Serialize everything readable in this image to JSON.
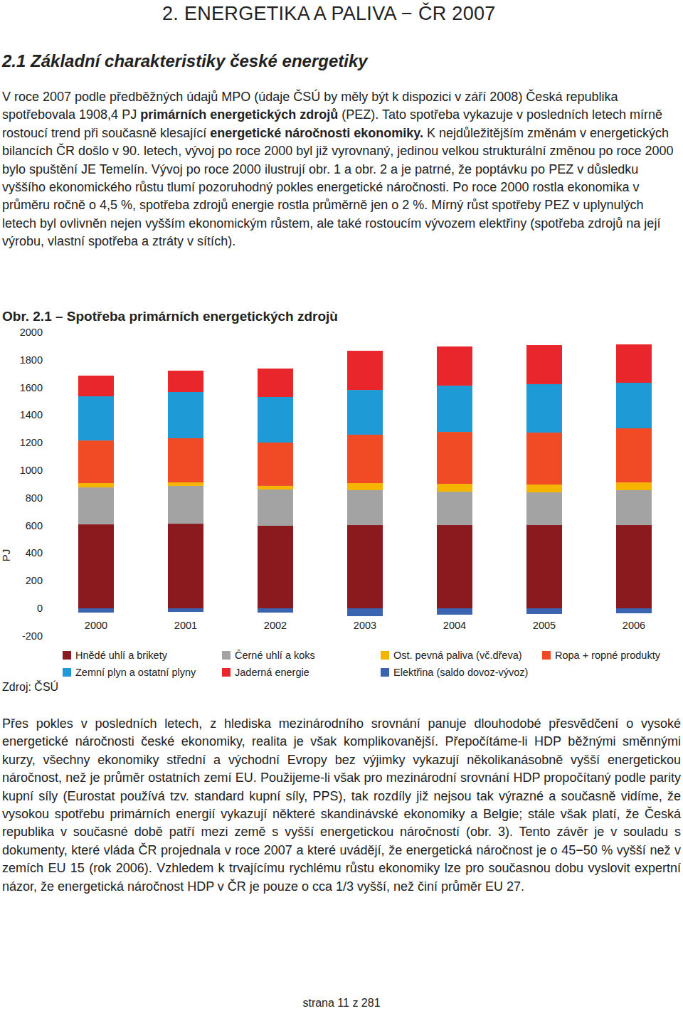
{
  "header": {
    "title": "2. ENERGETIKA A PALIVA − ČR 2007",
    "subtitle": "2.1 Základní charakteristiky české energetiky"
  },
  "intro": {
    "spans": [
      {
        "text": "V roce 2007 podle předběžných údajů MPO (údaje ČSÚ by měly být k dispozici v září 2008) Česká republika spotřebovala 1908,4 PJ ",
        "bold": false
      },
      {
        "text": "primárních energetických zdrojů",
        "bold": true
      },
      {
        "text": " (PEZ). Tato spotřeba vykazuje v posledních letech mírně rostoucí trend při současně klesající ",
        "bold": false
      },
      {
        "text": "energetické náročnosti ekonomiky.",
        "bold": true
      },
      {
        "text": " K nejdůležitějším změnám v energetických bilancích ČR došlo v 90. letech, vývoj po roce 2000 byl již vyrovnaný, jedinou velkou strukturální změnou po roce 2000 bylo spuštění JE Temelín. Vývoj po roce 2000 ilustrují obr. 1 a obr. 2 a je patrné, že poptávku po PEZ v důsledku vyššího ekonomického růstu tlumí pozoruhodný pokles energetické náročnosti. Po roce 2000 rostla ekonomika v průměru ročně o 4,5 %, spotřeba zdrojů energie rostla průměrně jen o 2 %. Mírný růst spotřeby PEZ v uplynulých letech byl ovlivněn nejen vyšším ekonomickým růstem, ale také rostoucím vývozem elektřiny (spotřeba zdrojů na její výrobu, vlastní spotřeba a ztráty v sítích).",
        "bold": false
      }
    ]
  },
  "figure": {
    "title": "Obr. 2.1 – Spotřeba primárních energetických zdrojù",
    "source": "Zdroj: ČSÚ"
  },
  "chart_data": {
    "type": "bar",
    "stacked": true,
    "y_label": "PJ",
    "categories": [
      "2000",
      "2001",
      "2002",
      "2003",
      "2004",
      "2005",
      "2006"
    ],
    "ylim": [
      -200,
      2000
    ],
    "yticks": [
      -200,
      0,
      200,
      400,
      600,
      800,
      1000,
      1200,
      1400,
      1600,
      1800,
      2000
    ],
    "grid": false,
    "legend": "bottom",
    "series": [
      {
        "name": "Hnědé uhlí a brikety",
        "color": "#8b1a1e",
        "values": [
          608,
          613,
          598,
          603,
          603,
          603,
          603
        ]
      },
      {
        "name": "Černé uhlí a koks",
        "color": "#a3a3a3",
        "values": [
          268,
          274,
          263,
          253,
          242,
          237,
          253
        ]
      },
      {
        "name": "Ost. pevná paliva (vč.dřeva)",
        "color": "#f5b400",
        "values": [
          31,
          25,
          26,
          51,
          57,
          57,
          56
        ]
      },
      {
        "name": "Ropa + ropné produkty",
        "color": "#f04b24",
        "values": [
          309,
          320,
          314,
          351,
          376,
          376,
          392
        ]
      },
      {
        "name": "Zemní plyn a ostatní plyny",
        "color": "#1e9ad6",
        "values": [
          320,
          335,
          330,
          324,
          335,
          351,
          330
        ]
      },
      {
        "name": "Jaderná energie",
        "color": "#e8262b",
        "values": [
          150,
          155,
          206,
          284,
          284,
          283,
          278
        ]
      },
      {
        "name": "Elektřina (saldo dovoz-vývoz)",
        "color": "#3a64b0",
        "values": [
          -31,
          -26,
          -31,
          -57,
          -46,
          -41,
          -36
        ]
      }
    ]
  },
  "closing": "Přes pokles v posledních letech, z hlediska mezinárodního srovnání panuje dlouhodobé přesvědčení o vysoké energetické náročnosti české ekonomiky, realita je však komplikovanější. Přepočítáme-li HDP běžnými směnnými kurzy, všechny ekonomiky střední a východní Evropy bez výjimky vykazují několikanásobně vyšší energetickou náročnost, než je průměr ostatních zemí EU. Použijeme-li však pro mezinárodní srovnání HDP propočítaný podle parity kupní síly (Eurostat používá tzv. standard kupní síly, PPS), tak rozdíly již nejsou tak výrazné a současně vidíme, že vysokou spotřebu primárních energií vykazují některé skandinávské ekonomiky a Belgie; stále však platí, že Česká republika v současné době patří mezi země s vyšší energetickou náročností (obr. 3). Tento závěr je v souladu s dokumenty, které vláda ČR projednala v roce 2007 a které uvádějí, že energetická náročnost je o 45−50 % vyšší než v zemích EU 15 (rok 2006). Vzhledem k trvajícímu rychlému růstu ekonomiky lze pro současnou dobu vyslovit expertní názor, že energetická náročnost HDP v ČR je pouze o cca 1/3 vyšší, než činí průměr EU 27.",
  "footer": "strana 11 z 281"
}
